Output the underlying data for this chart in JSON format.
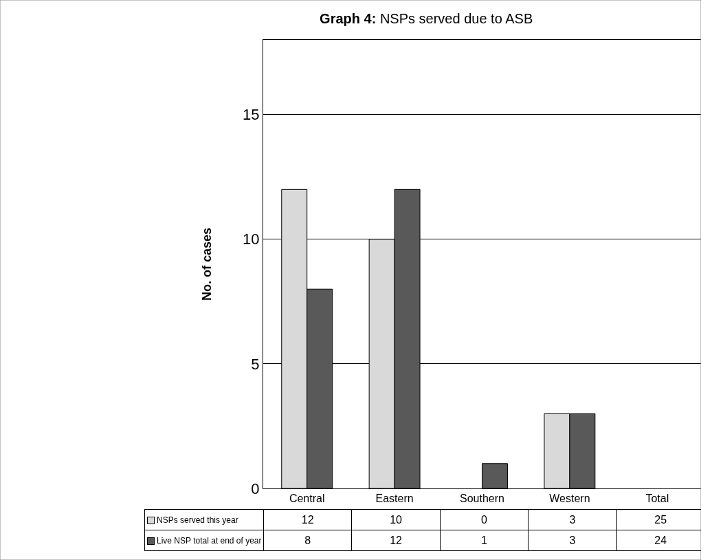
{
  "chart_data": {
    "type": "bar",
    "title": "Graph 4: NSPs served due to ASB",
    "ylabel": "No. of cases",
    "categories": [
      "Central",
      "Eastern",
      "Southern",
      "Western",
      "Total"
    ],
    "series": [
      {
        "name": "NSPs served this year",
        "color": "#d9d9d9",
        "values": [
          12,
          10,
          0,
          3,
          null
        ],
        "value_labels": [
          "12",
          "10",
          "0",
          "3",
          "25"
        ]
      },
      {
        "name": "Live NSP total at end of year",
        "color": "#595959",
        "values": [
          8,
          12,
          1,
          3,
          null
        ],
        "value_labels": [
          "8",
          "12",
          "1",
          "3",
          "24"
        ]
      }
    ],
    "ylim": [
      0,
      18
    ],
    "yticks": [
      0,
      5,
      10,
      15
    ],
    "grid": "y",
    "legend": "bottom left"
  }
}
